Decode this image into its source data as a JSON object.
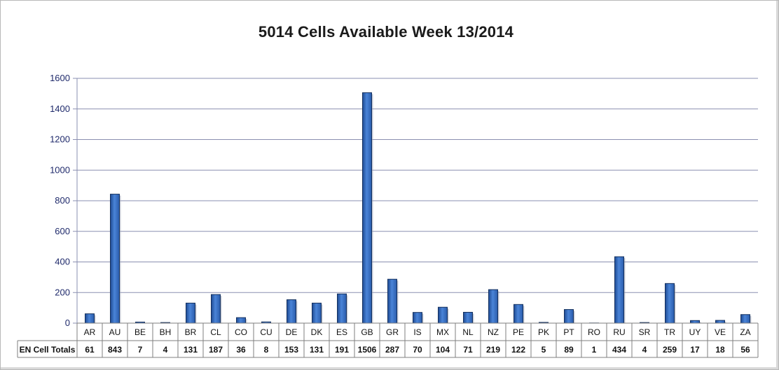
{
  "chart_data": {
    "type": "bar",
    "title": "5014 Cells Available Week 13/2014",
    "ylim": [
      0,
      1600
    ],
    "yticks": [
      0,
      200,
      400,
      600,
      800,
      1000,
      1200,
      1400,
      1600
    ],
    "grid": true,
    "categories": [
      "AR",
      "AU",
      "BE",
      "BH",
      "BR",
      "CL",
      "CO",
      "CU",
      "DE",
      "DK",
      "ES",
      "GB",
      "GR",
      "IS",
      "MX",
      "NL",
      "NZ",
      "PE",
      "PK",
      "PT",
      "RO",
      "RU",
      "SR",
      "TR",
      "UY",
      "VE",
      "ZA"
    ],
    "series": [
      {
        "name": "EN Cell Totals",
        "values": [
          61,
          843,
          7,
          4,
          131,
          187,
          36,
          8,
          153,
          131,
          191,
          1506,
          287,
          70,
          104,
          71,
          219,
          122,
          5,
          89,
          1,
          434,
          4,
          259,
          17,
          18,
          56
        ]
      }
    ],
    "colors": {
      "bar": "#3a6fc4",
      "bar_dark": "#1e4a93",
      "grid": "#8a8fb0",
      "axis_text": "#1f2a6b"
    }
  }
}
